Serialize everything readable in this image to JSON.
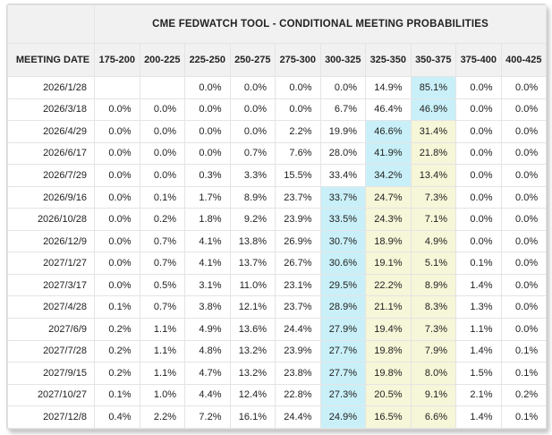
{
  "app": {
    "title": "CME FEDWATCH TOOL - CONDITIONAL MEETING PROBABILITIES"
  },
  "colors": {
    "highlight_max": "#c9f0f8",
    "highlight_current_path": "#f6f6d8",
    "header_background": "#f1f1f1",
    "border": "#e4e4e4",
    "text": "#222222"
  },
  "table": {
    "date_column_header": "MEETING DATE",
    "rate_column_headers": [
      "175-200",
      "200-225",
      "225-250",
      "250-275",
      "275-300",
      "300-325",
      "325-350",
      "350-375",
      "375-400",
      "400-425"
    ],
    "rows": [
      {
        "date": "2026/1/28",
        "values": [
          "",
          "",
          "0.0%",
          "0.0%",
          "0.0%",
          "0.0%",
          "14.9%",
          "85.1%",
          "0.0%",
          "0.0%"
        ],
        "cyan": [
          7
        ],
        "yellow": []
      },
      {
        "date": "2026/3/18",
        "values": [
          "0.0%",
          "0.0%",
          "0.0%",
          "0.0%",
          "0.0%",
          "6.7%",
          "46.4%",
          "46.9%",
          "0.0%",
          "0.0%"
        ],
        "cyan": [
          7
        ],
        "yellow": []
      },
      {
        "date": "2026/4/29",
        "values": [
          "0.0%",
          "0.0%",
          "0.0%",
          "0.0%",
          "2.2%",
          "19.9%",
          "46.6%",
          "31.4%",
          "0.0%",
          "0.0%"
        ],
        "cyan": [
          6
        ],
        "yellow": [
          7
        ]
      },
      {
        "date": "2026/6/17",
        "values": [
          "0.0%",
          "0.0%",
          "0.0%",
          "0.7%",
          "7.6%",
          "28.0%",
          "41.9%",
          "21.8%",
          "0.0%",
          "0.0%"
        ],
        "cyan": [
          6
        ],
        "yellow": [
          7
        ]
      },
      {
        "date": "2026/7/29",
        "values": [
          "0.0%",
          "0.0%",
          "0.3%",
          "3.3%",
          "15.5%",
          "33.4%",
          "34.2%",
          "13.4%",
          "0.0%",
          "0.0%"
        ],
        "cyan": [
          6
        ],
        "yellow": [
          7
        ]
      },
      {
        "date": "2026/9/16",
        "values": [
          "0.0%",
          "0.1%",
          "1.7%",
          "8.9%",
          "23.7%",
          "33.7%",
          "24.7%",
          "7.3%",
          "0.0%",
          "0.0%"
        ],
        "cyan": [
          5
        ],
        "yellow": [
          6,
          7
        ]
      },
      {
        "date": "2026/10/28",
        "values": [
          "0.0%",
          "0.2%",
          "1.8%",
          "9.2%",
          "23.9%",
          "33.5%",
          "24.3%",
          "7.1%",
          "0.0%",
          "0.0%"
        ],
        "cyan": [
          5
        ],
        "yellow": [
          6,
          7
        ]
      },
      {
        "date": "2026/12/9",
        "values": [
          "0.0%",
          "0.7%",
          "4.1%",
          "13.8%",
          "26.9%",
          "30.7%",
          "18.9%",
          "4.9%",
          "0.0%",
          "0.0%"
        ],
        "cyan": [
          5
        ],
        "yellow": [
          6,
          7
        ]
      },
      {
        "date": "2027/1/27",
        "values": [
          "0.0%",
          "0.7%",
          "4.1%",
          "13.7%",
          "26.7%",
          "30.6%",
          "19.1%",
          "5.1%",
          "0.1%",
          "0.0%"
        ],
        "cyan": [
          5
        ],
        "yellow": [
          6,
          7
        ]
      },
      {
        "date": "2027/3/17",
        "values": [
          "0.0%",
          "0.5%",
          "3.1%",
          "11.0%",
          "23.1%",
          "29.5%",
          "22.2%",
          "8.9%",
          "1.4%",
          "0.0%"
        ],
        "cyan": [
          5
        ],
        "yellow": [
          6,
          7
        ]
      },
      {
        "date": "2027/4/28",
        "values": [
          "0.1%",
          "0.7%",
          "3.8%",
          "12.1%",
          "23.7%",
          "28.9%",
          "21.1%",
          "8.3%",
          "1.3%",
          "0.0%"
        ],
        "cyan": [
          5
        ],
        "yellow": [
          6,
          7
        ]
      },
      {
        "date": "2027/6/9",
        "values": [
          "0.2%",
          "1.1%",
          "4.9%",
          "13.6%",
          "24.4%",
          "27.9%",
          "19.4%",
          "7.3%",
          "1.1%",
          "0.0%"
        ],
        "cyan": [
          5
        ],
        "yellow": [
          6,
          7
        ]
      },
      {
        "date": "2027/7/28",
        "values": [
          "0.2%",
          "1.1%",
          "4.8%",
          "13.2%",
          "23.9%",
          "27.7%",
          "19.8%",
          "7.9%",
          "1.4%",
          "0.1%"
        ],
        "cyan": [
          5
        ],
        "yellow": [
          6,
          7
        ]
      },
      {
        "date": "2027/9/15",
        "values": [
          "0.2%",
          "1.1%",
          "4.7%",
          "13.2%",
          "23.8%",
          "27.7%",
          "19.8%",
          "8.0%",
          "1.5%",
          "0.1%"
        ],
        "cyan": [
          5
        ],
        "yellow": [
          6,
          7
        ]
      },
      {
        "date": "2027/10/27",
        "values": [
          "0.1%",
          "1.0%",
          "4.4%",
          "12.4%",
          "22.8%",
          "27.3%",
          "20.5%",
          "9.1%",
          "2.1%",
          "0.2%"
        ],
        "cyan": [
          5
        ],
        "yellow": [
          6,
          7
        ]
      },
      {
        "date": "2027/12/8",
        "values": [
          "0.4%",
          "2.2%",
          "7.2%",
          "16.1%",
          "24.4%",
          "24.9%",
          "16.5%",
          "6.6%",
          "1.4%",
          "0.1%"
        ],
        "cyan": [
          5
        ],
        "yellow": [
          6,
          7
        ]
      }
    ]
  }
}
